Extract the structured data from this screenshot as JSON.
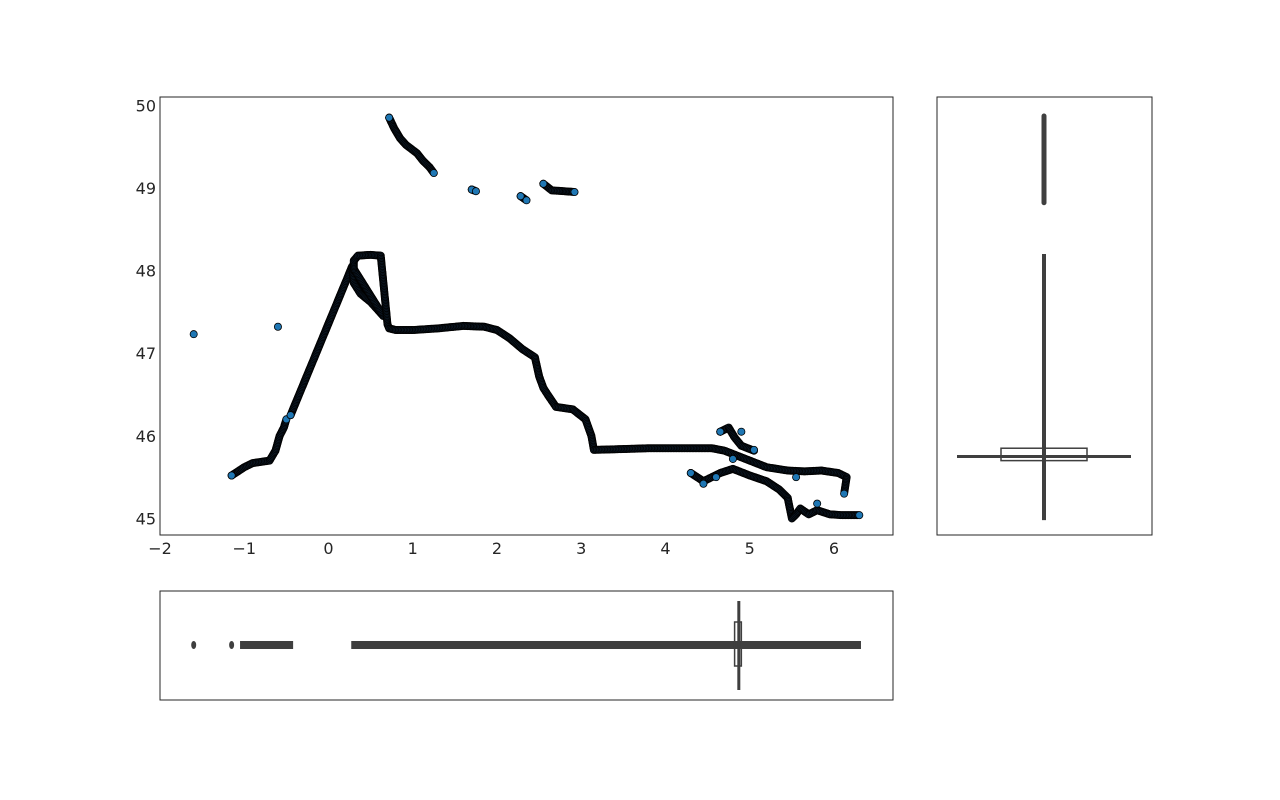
{
  "chart_data": [
    {
      "panel": "main",
      "type": "scatter",
      "title": "",
      "xlabel": "",
      "ylabel": "",
      "xlim": [
        -2,
        6.7
      ],
      "ylim": [
        44.8,
        50.1
      ],
      "xticks": [
        -2,
        -1,
        0,
        1,
        2,
        3,
        4,
        5,
        6
      ],
      "yticks": [
        45,
        46,
        47,
        48,
        49,
        50
      ],
      "xtick_labels": [
        "−2",
        "−1",
        "0",
        "1",
        "2",
        "3",
        "4",
        "5",
        "6"
      ],
      "ytick_labels": [
        "45",
        "46",
        "47",
        "48",
        "49",
        "50"
      ],
      "grid": false,
      "marker_face_color": "#1f77b4",
      "marker_edge_color": "#000000",
      "series": [
        {
          "description_free": true,
          "x": [
            -1.6,
            -0.6,
            -1.15,
            -1.0,
            -0.9,
            -0.7,
            -0.63,
            -0.58,
            -0.53,
            -0.5,
            -0.45,
            0.28,
            0.3,
            0.38,
            0.5,
            0.65,
            0.3,
            0.3,
            0.35,
            0.5,
            0.62,
            0.7,
            0.72,
            0.8,
            1.0,
            1.3,
            1.6,
            1.85,
            2.0,
            2.15,
            2.3,
            2.45,
            2.5,
            2.55,
            2.6,
            2.7,
            2.9,
            3.05,
            3.12,
            3.15,
            3.5,
            3.8,
            4.0,
            4.3,
            4.55,
            4.7,
            5.0,
            5.2,
            5.45,
            5.65,
            5.85,
            6.05,
            6.15,
            6.12,
            4.3,
            4.45,
            4.65,
            4.8,
            5.0,
            5.2,
            5.35,
            5.45,
            5.5,
            5.55,
            5.6,
            5.7,
            5.8,
            5.95,
            6.1,
            6.3,
            4.65,
            4.75,
            4.82,
            4.9,
            5.05,
            0.72,
            0.78,
            0.85,
            0.92,
            1.05,
            1.12,
            1.2,
            1.25,
            1.7,
            1.75,
            2.28,
            2.35,
            2.55,
            2.65,
            2.8,
            2.92
          ],
          "y": [
            47.23,
            47.32,
            45.52,
            45.62,
            45.67,
            45.7,
            45.82,
            46.0,
            46.1,
            46.2,
            46.25,
            48.05,
            47.85,
            47.72,
            47.62,
            47.45,
            48.02,
            48.12,
            48.18,
            48.19,
            48.18,
            47.35,
            47.3,
            47.28,
            47.28,
            47.3,
            47.33,
            47.32,
            47.28,
            47.18,
            47.05,
            46.95,
            46.72,
            46.58,
            46.5,
            46.35,
            46.32,
            46.2,
            46.0,
            45.83,
            45.84,
            45.85,
            45.85,
            45.85,
            45.85,
            45.82,
            45.7,
            45.62,
            45.58,
            45.57,
            45.58,
            45.55,
            45.5,
            45.3,
            45.55,
            45.45,
            45.55,
            45.6,
            45.52,
            45.45,
            45.35,
            45.25,
            45.0,
            45.05,
            45.12,
            45.05,
            45.1,
            45.05,
            45.04,
            45.04,
            46.05,
            46.1,
            45.98,
            45.88,
            45.82,
            49.85,
            49.72,
            49.6,
            49.52,
            49.42,
            49.33,
            49.25,
            49.18,
            48.98,
            48.96,
            48.9,
            48.85,
            49.05,
            48.97,
            48.96,
            48.95
          ]
        }
      ]
    },
    {
      "panel": "right-marginal",
      "type": "boxplot",
      "orientation": "vertical",
      "variable": "y",
      "whisker_range": [
        44.98,
        48.2
      ],
      "median": 45.75,
      "q1": 45.7,
      "q3": 45.85,
      "outlier_range": [
        48.82,
        49.87
      ],
      "color": "#3f3f3f"
    },
    {
      "panel": "bottom-marginal",
      "type": "boxplot",
      "orientation": "horizontal",
      "variable": "x",
      "whisker_range": [
        0.27,
        6.32
      ],
      "median": 4.87,
      "q1": 4.82,
      "q3": 4.9,
      "outlier_range": [
        -1.6,
        -0.42
      ],
      "outlier_points": [
        -1.6,
        -1.15
      ],
      "color": "#3f3f3f"
    }
  ]
}
